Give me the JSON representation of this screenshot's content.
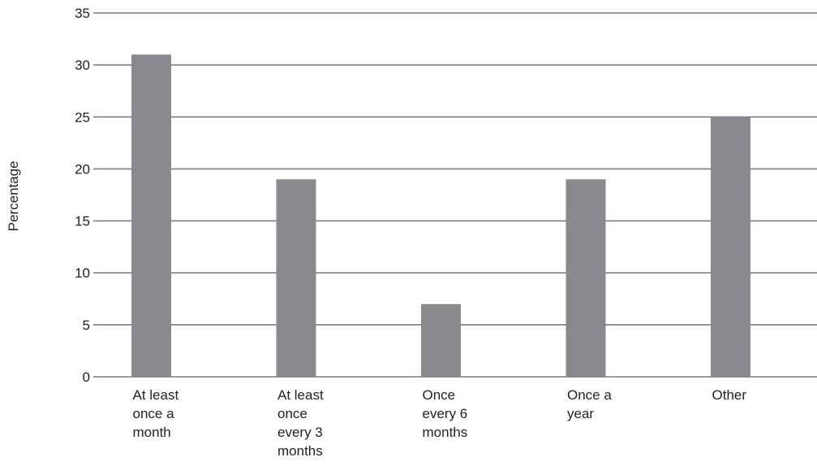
{
  "chart_data": {
    "type": "bar",
    "title": "",
    "xlabel": "",
    "ylabel": "Percentage",
    "ylim": [
      0,
      35
    ],
    "yticks": [
      0,
      5,
      10,
      15,
      20,
      25,
      30,
      35
    ],
    "grid": true,
    "categories": [
      "At least once a month",
      "At least once every 3 months",
      "Once every 6 months",
      "Once a year",
      "Other"
    ],
    "category_label_lines": [
      [
        "At least",
        "once a",
        "month"
      ],
      [
        "At least",
        "once",
        "every 3",
        "months"
      ],
      [
        "Once",
        "every 6",
        "months"
      ],
      [
        "Once a",
        "year"
      ],
      [
        "Other"
      ]
    ],
    "values": [
      31,
      19,
      7,
      19,
      25
    ],
    "colors": {
      "bar": "#898a8d",
      "grid": "#7d7d7f",
      "axis": "#7d7d7f",
      "text": "#231f20"
    }
  }
}
